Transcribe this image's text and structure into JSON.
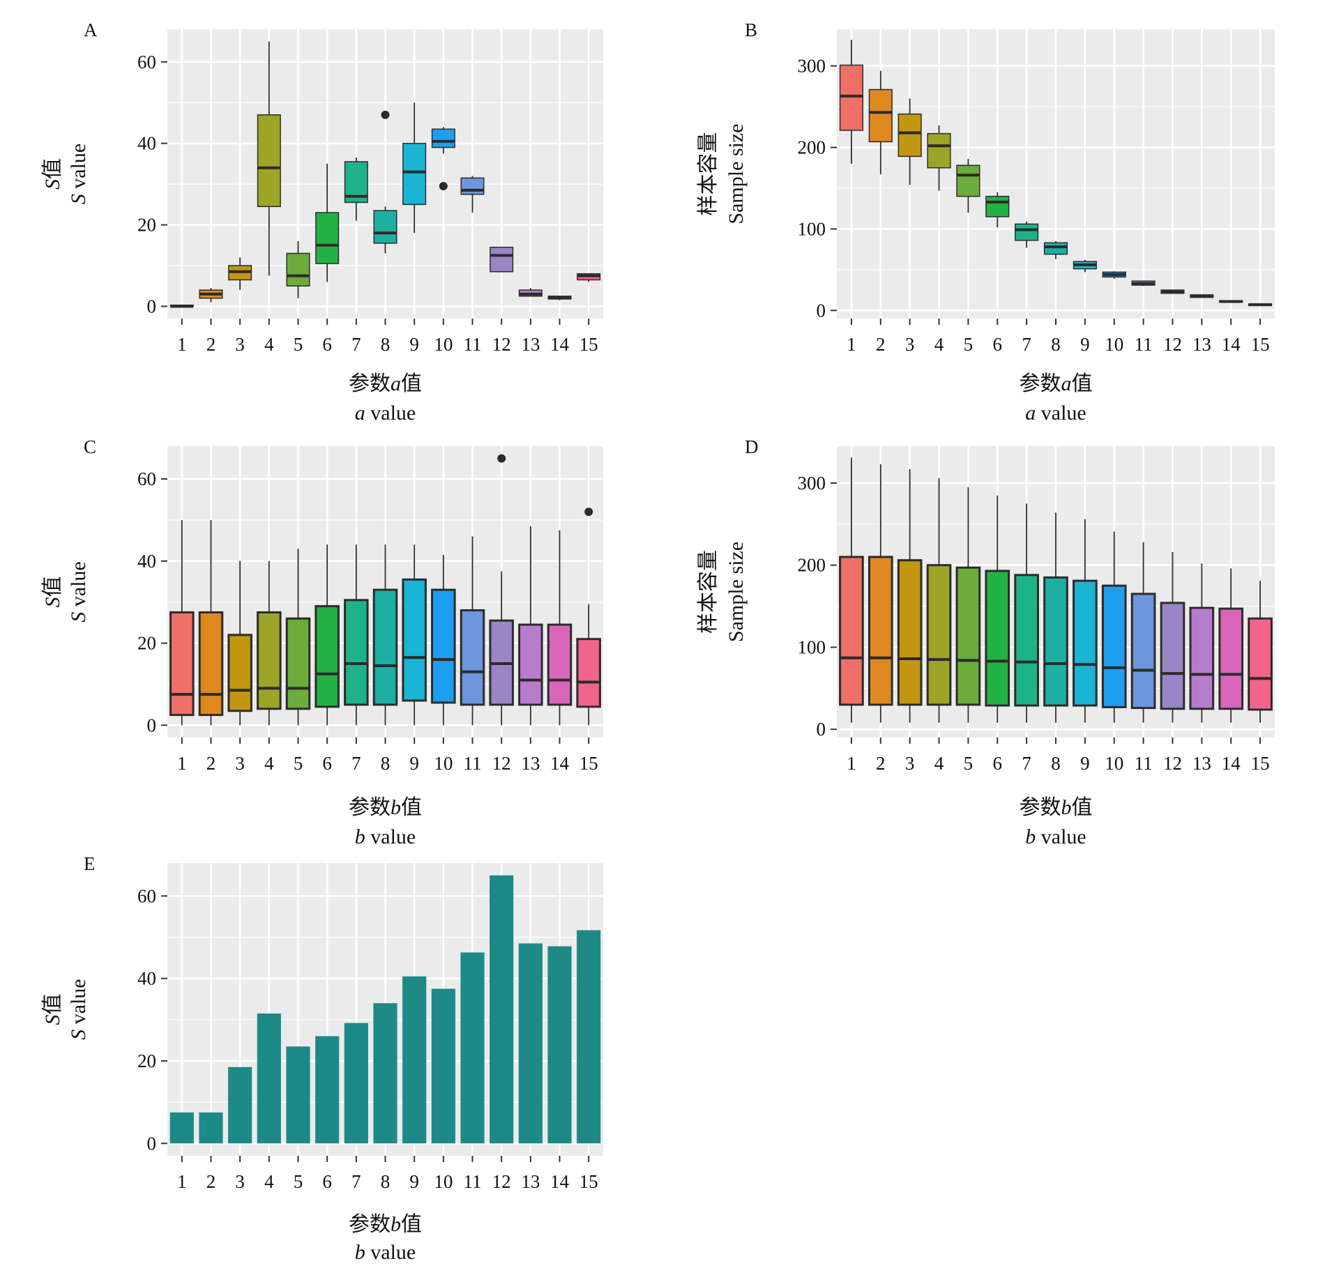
{
  "figure": {
    "background": "#ffffff",
    "panel_background": "#ebebeb",
    "grid_color": "#ffffff",
    "box_outline": "#2b2b2b",
    "bar_color": "#1d8a87",
    "palette": [
      "#f07068",
      "#e08820",
      "#c29610",
      "#9ea426",
      "#6bac3a",
      "#22b242",
      "#1eb28a",
      "#1cb0a2",
      "#1ab4d4",
      "#1e9ef0",
      "#6e96dc",
      "#9a86c4",
      "#b97ccc",
      "#d966ba",
      "#f2648a"
    ]
  },
  "chart_data": [
    {
      "panel": "A",
      "type": "box",
      "categories": [
        "1",
        "2",
        "3",
        "4",
        "5",
        "6",
        "7",
        "8",
        "9",
        "10",
        "11",
        "12",
        "13",
        "14",
        "15"
      ],
      "ylim": [
        -3,
        68
      ],
      "yticks": [
        0,
        20,
        40,
        60
      ],
      "grid": true,
      "ylabel_lines": [
        {
          "italic": "S",
          "text": "值"
        },
        {
          "italic": "S",
          "text": " value"
        }
      ],
      "xlabel_lines": [
        {
          "prefix": "参数",
          "italic": "a",
          "text": "值"
        },
        {
          "italic": "a",
          "text": " value"
        }
      ],
      "boxes": [
        {
          "min": 0,
          "q1": 0,
          "median": 0,
          "q3": 0.3,
          "max": 0.3,
          "outliers": []
        },
        {
          "min": 1,
          "q1": 2,
          "median": 3,
          "q3": 4,
          "max": 4.5,
          "outliers": []
        },
        {
          "min": 4,
          "q1": 6.5,
          "median": 8.5,
          "q3": 10,
          "max": 12,
          "outliers": []
        },
        {
          "min": 7.5,
          "q1": 24.5,
          "median": 34,
          "q3": 47,
          "max": 65,
          "outliers": []
        },
        {
          "min": 2,
          "q1": 5,
          "median": 7.5,
          "q3": 13,
          "max": 16,
          "outliers": []
        },
        {
          "min": 6,
          "q1": 10.5,
          "median": 15,
          "q3": 23,
          "max": 35,
          "outliers": []
        },
        {
          "min": 21,
          "q1": 25.5,
          "median": 27,
          "q3": 35.5,
          "max": 36.5,
          "outliers": []
        },
        {
          "min": 13,
          "q1": 15.5,
          "median": 18,
          "q3": 23.5,
          "max": 24.5,
          "outliers": [
            47
          ]
        },
        {
          "min": 18,
          "q1": 25,
          "median": 33,
          "q3": 40,
          "max": 50,
          "outliers": []
        },
        {
          "min": 37.5,
          "q1": 39,
          "median": 40.5,
          "q3": 43.5,
          "max": 44,
          "outliers": [
            29.5
          ]
        },
        {
          "min": 23,
          "q1": 27.5,
          "median": 28.5,
          "q3": 31.5,
          "max": 32,
          "outliers": []
        },
        {
          "min": 8.5,
          "q1": 8.5,
          "median": 12.5,
          "q3": 14.5,
          "max": 14.5,
          "outliers": []
        },
        {
          "min": 2.5,
          "q1": 2.5,
          "median": 3,
          "q3": 4,
          "max": 4.5,
          "outliers": []
        },
        {
          "min": 1.5,
          "q1": 1.8,
          "median": 2.2,
          "q3": 2.5,
          "max": 2.5,
          "outliers": []
        },
        {
          "min": 6,
          "q1": 6.5,
          "median": 7.5,
          "q3": 8,
          "max": 8,
          "outliers": []
        }
      ]
    },
    {
      "panel": "B",
      "type": "box",
      "categories": [
        "1",
        "2",
        "3",
        "4",
        "5",
        "6",
        "7",
        "8",
        "9",
        "10",
        "11",
        "12",
        "13",
        "14",
        "15"
      ],
      "ylim": [
        -10,
        345
      ],
      "yticks": [
        0,
        100,
        200,
        300
      ],
      "grid": true,
      "ylabel_lines": [
        {
          "text": "样本容量"
        },
        {
          "text": "Sample size"
        }
      ],
      "xlabel_lines": [
        {
          "prefix": "参数",
          "italic": "a",
          "text": "值"
        },
        {
          "italic": "a",
          "text": " value"
        }
      ],
      "boxes": [
        {
          "min": 180,
          "q1": 221,
          "median": 263,
          "q3": 301,
          "max": 332,
          "outliers": []
        },
        {
          "min": 167,
          "q1": 207,
          "median": 243,
          "q3": 271,
          "max": 294,
          "outliers": []
        },
        {
          "min": 154,
          "q1": 189,
          "median": 218,
          "q3": 241,
          "max": 260,
          "outliers": []
        },
        {
          "min": 147,
          "q1": 175,
          "median": 202,
          "q3": 217,
          "max": 227,
          "outliers": []
        },
        {
          "min": 120,
          "q1": 140,
          "median": 166,
          "q3": 178,
          "max": 186,
          "outliers": []
        },
        {
          "min": 102,
          "q1": 115,
          "median": 133,
          "q3": 140,
          "max": 145,
          "outliers": []
        },
        {
          "min": 77,
          "q1": 86,
          "median": 99,
          "q3": 106,
          "max": 109,
          "outliers": []
        },
        {
          "min": 63,
          "q1": 69,
          "median": 78,
          "q3": 83,
          "max": 85,
          "outliers": []
        },
        {
          "min": 47,
          "q1": 51,
          "median": 56,
          "q3": 60,
          "max": 62,
          "outliers": []
        },
        {
          "min": 39,
          "q1": 41,
          "median": 44,
          "q3": 47,
          "max": 48,
          "outliers": []
        },
        {
          "min": 30,
          "q1": 31,
          "median": 33,
          "q3": 36,
          "max": 36,
          "outliers": []
        },
        {
          "min": 21,
          "q1": 21,
          "median": 23,
          "q3": 25,
          "max": 25,
          "outliers": []
        },
        {
          "min": 16,
          "q1": 16,
          "median": 18,
          "q3": 19,
          "max": 19,
          "outliers": []
        },
        {
          "min": 10,
          "q1": 10,
          "median": 11,
          "q3": 12,
          "max": 12,
          "outliers": []
        },
        {
          "min": 6,
          "q1": 6,
          "median": 7,
          "q3": 8,
          "max": 8,
          "outliers": []
        }
      ]
    },
    {
      "panel": "C",
      "type": "box",
      "categories": [
        "1",
        "2",
        "3",
        "4",
        "5",
        "6",
        "7",
        "8",
        "9",
        "10",
        "11",
        "12",
        "13",
        "14",
        "15"
      ],
      "ylim": [
        -3,
        68
      ],
      "yticks": [
        0,
        20,
        40,
        60
      ],
      "grid": true,
      "ylabel_lines": [
        {
          "italic": "S",
          "text": "值"
        },
        {
          "italic": "S",
          "text": " value"
        }
      ],
      "xlabel_lines": [
        {
          "prefix": "参数",
          "italic": "b",
          "text": "值"
        },
        {
          "italic": "b",
          "text": " value"
        }
      ],
      "boxes": [
        {
          "min": 0,
          "q1": 2.5,
          "median": 7.5,
          "q3": 27.5,
          "max": 50,
          "outliers": []
        },
        {
          "min": 0,
          "q1": 2.5,
          "median": 7.5,
          "q3": 27.5,
          "max": 50,
          "outliers": []
        },
        {
          "min": 0,
          "q1": 3.5,
          "median": 8.5,
          "q3": 22,
          "max": 40,
          "outliers": []
        },
        {
          "min": 0,
          "q1": 4,
          "median": 9,
          "q3": 27.5,
          "max": 40,
          "outliers": []
        },
        {
          "min": 0,
          "q1": 4,
          "median": 9,
          "q3": 26,
          "max": 43,
          "outliers": []
        },
        {
          "min": 0,
          "q1": 4.5,
          "median": 12.5,
          "q3": 29,
          "max": 44,
          "outliers": []
        },
        {
          "min": 0,
          "q1": 5,
          "median": 15,
          "q3": 30.5,
          "max": 44,
          "outliers": []
        },
        {
          "min": 0,
          "q1": 5,
          "median": 14.5,
          "q3": 33,
          "max": 44,
          "outliers": []
        },
        {
          "min": 0,
          "q1": 6,
          "median": 16.5,
          "q3": 35.5,
          "max": 44,
          "outliers": []
        },
        {
          "min": 0,
          "q1": 5.5,
          "median": 16,
          "q3": 33,
          "max": 41.5,
          "outliers": []
        },
        {
          "min": 0,
          "q1": 5,
          "median": 13,
          "q3": 28,
          "max": 46,
          "outliers": []
        },
        {
          "min": 0,
          "q1": 5,
          "median": 15,
          "q3": 25.5,
          "max": 37.5,
          "outliers": [
            65
          ]
        },
        {
          "min": 0,
          "q1": 5,
          "median": 11,
          "q3": 24.5,
          "max": 48.5,
          "outliers": []
        },
        {
          "min": 0,
          "q1": 5,
          "median": 11,
          "q3": 24.5,
          "max": 47.5,
          "outliers": []
        },
        {
          "min": 0,
          "q1": 4.5,
          "median": 10.5,
          "q3": 21,
          "max": 29.5,
          "outliers": [
            52
          ]
        }
      ]
    },
    {
      "panel": "D",
      "type": "box",
      "categories": [
        "1",
        "2",
        "3",
        "4",
        "5",
        "6",
        "7",
        "8",
        "9",
        "10",
        "11",
        "12",
        "13",
        "14",
        "15"
      ],
      "ylim": [
        -10,
        345
      ],
      "yticks": [
        0,
        100,
        200,
        300
      ],
      "grid": true,
      "ylabel_lines": [
        {
          "text": "样本容量"
        },
        {
          "text": "Sample size"
        }
      ],
      "xlabel_lines": [
        {
          "prefix": "参数",
          "italic": "b",
          "text": "值"
        },
        {
          "italic": "b",
          "text": " value"
        }
      ],
      "boxes": [
        {
          "min": 8,
          "q1": 30,
          "median": 87,
          "q3": 210,
          "max": 331,
          "outliers": []
        },
        {
          "min": 8,
          "q1": 30,
          "median": 87,
          "q3": 210,
          "max": 323,
          "outliers": []
        },
        {
          "min": 8,
          "q1": 30,
          "median": 86,
          "q3": 206,
          "max": 317,
          "outliers": []
        },
        {
          "min": 8,
          "q1": 30,
          "median": 85,
          "q3": 200,
          "max": 306,
          "outliers": []
        },
        {
          "min": 8,
          "q1": 30,
          "median": 84,
          "q3": 197,
          "max": 295,
          "outliers": []
        },
        {
          "min": 8,
          "q1": 29,
          "median": 83,
          "q3": 193,
          "max": 285,
          "outliers": []
        },
        {
          "min": 8,
          "q1": 29,
          "median": 82,
          "q3": 188,
          "max": 275,
          "outliers": []
        },
        {
          "min": 8,
          "q1": 29,
          "median": 80,
          "q3": 185,
          "max": 264,
          "outliers": []
        },
        {
          "min": 8,
          "q1": 29,
          "median": 79,
          "q3": 181,
          "max": 256,
          "outliers": []
        },
        {
          "min": 8,
          "q1": 27,
          "median": 75,
          "q3": 175,
          "max": 241,
          "outliers": []
        },
        {
          "min": 8,
          "q1": 26,
          "median": 72,
          "q3": 165,
          "max": 228,
          "outliers": []
        },
        {
          "min": 8,
          "q1": 25,
          "median": 68,
          "q3": 154,
          "max": 216,
          "outliers": []
        },
        {
          "min": 8,
          "q1": 25,
          "median": 67,
          "q3": 148,
          "max": 202,
          "outliers": []
        },
        {
          "min": 8,
          "q1": 25,
          "median": 67,
          "q3": 147,
          "max": 196,
          "outliers": []
        },
        {
          "min": 8,
          "q1": 24,
          "median": 62,
          "q3": 135,
          "max": 181,
          "outliers": []
        }
      ]
    },
    {
      "panel": "E",
      "type": "bar",
      "categories": [
        "1",
        "2",
        "3",
        "4",
        "5",
        "6",
        "7",
        "8",
        "9",
        "10",
        "11",
        "12",
        "13",
        "14",
        "15"
      ],
      "values": [
        7.5,
        7.5,
        18.5,
        31.5,
        23.5,
        26,
        29.2,
        34,
        40.5,
        37.5,
        46.3,
        65,
        48.5,
        47.8,
        51.7
      ],
      "ylim": [
        -3,
        68
      ],
      "yticks": [
        0,
        20,
        40,
        60
      ],
      "grid": true,
      "ylabel_lines": [
        {
          "italic": "S",
          "text": "值"
        },
        {
          "italic": "S",
          "text": " value"
        }
      ],
      "xlabel_lines": [
        {
          "prefix": "参数",
          "italic": "b",
          "text": "值"
        },
        {
          "italic": "b",
          "text": " value"
        }
      ]
    }
  ]
}
